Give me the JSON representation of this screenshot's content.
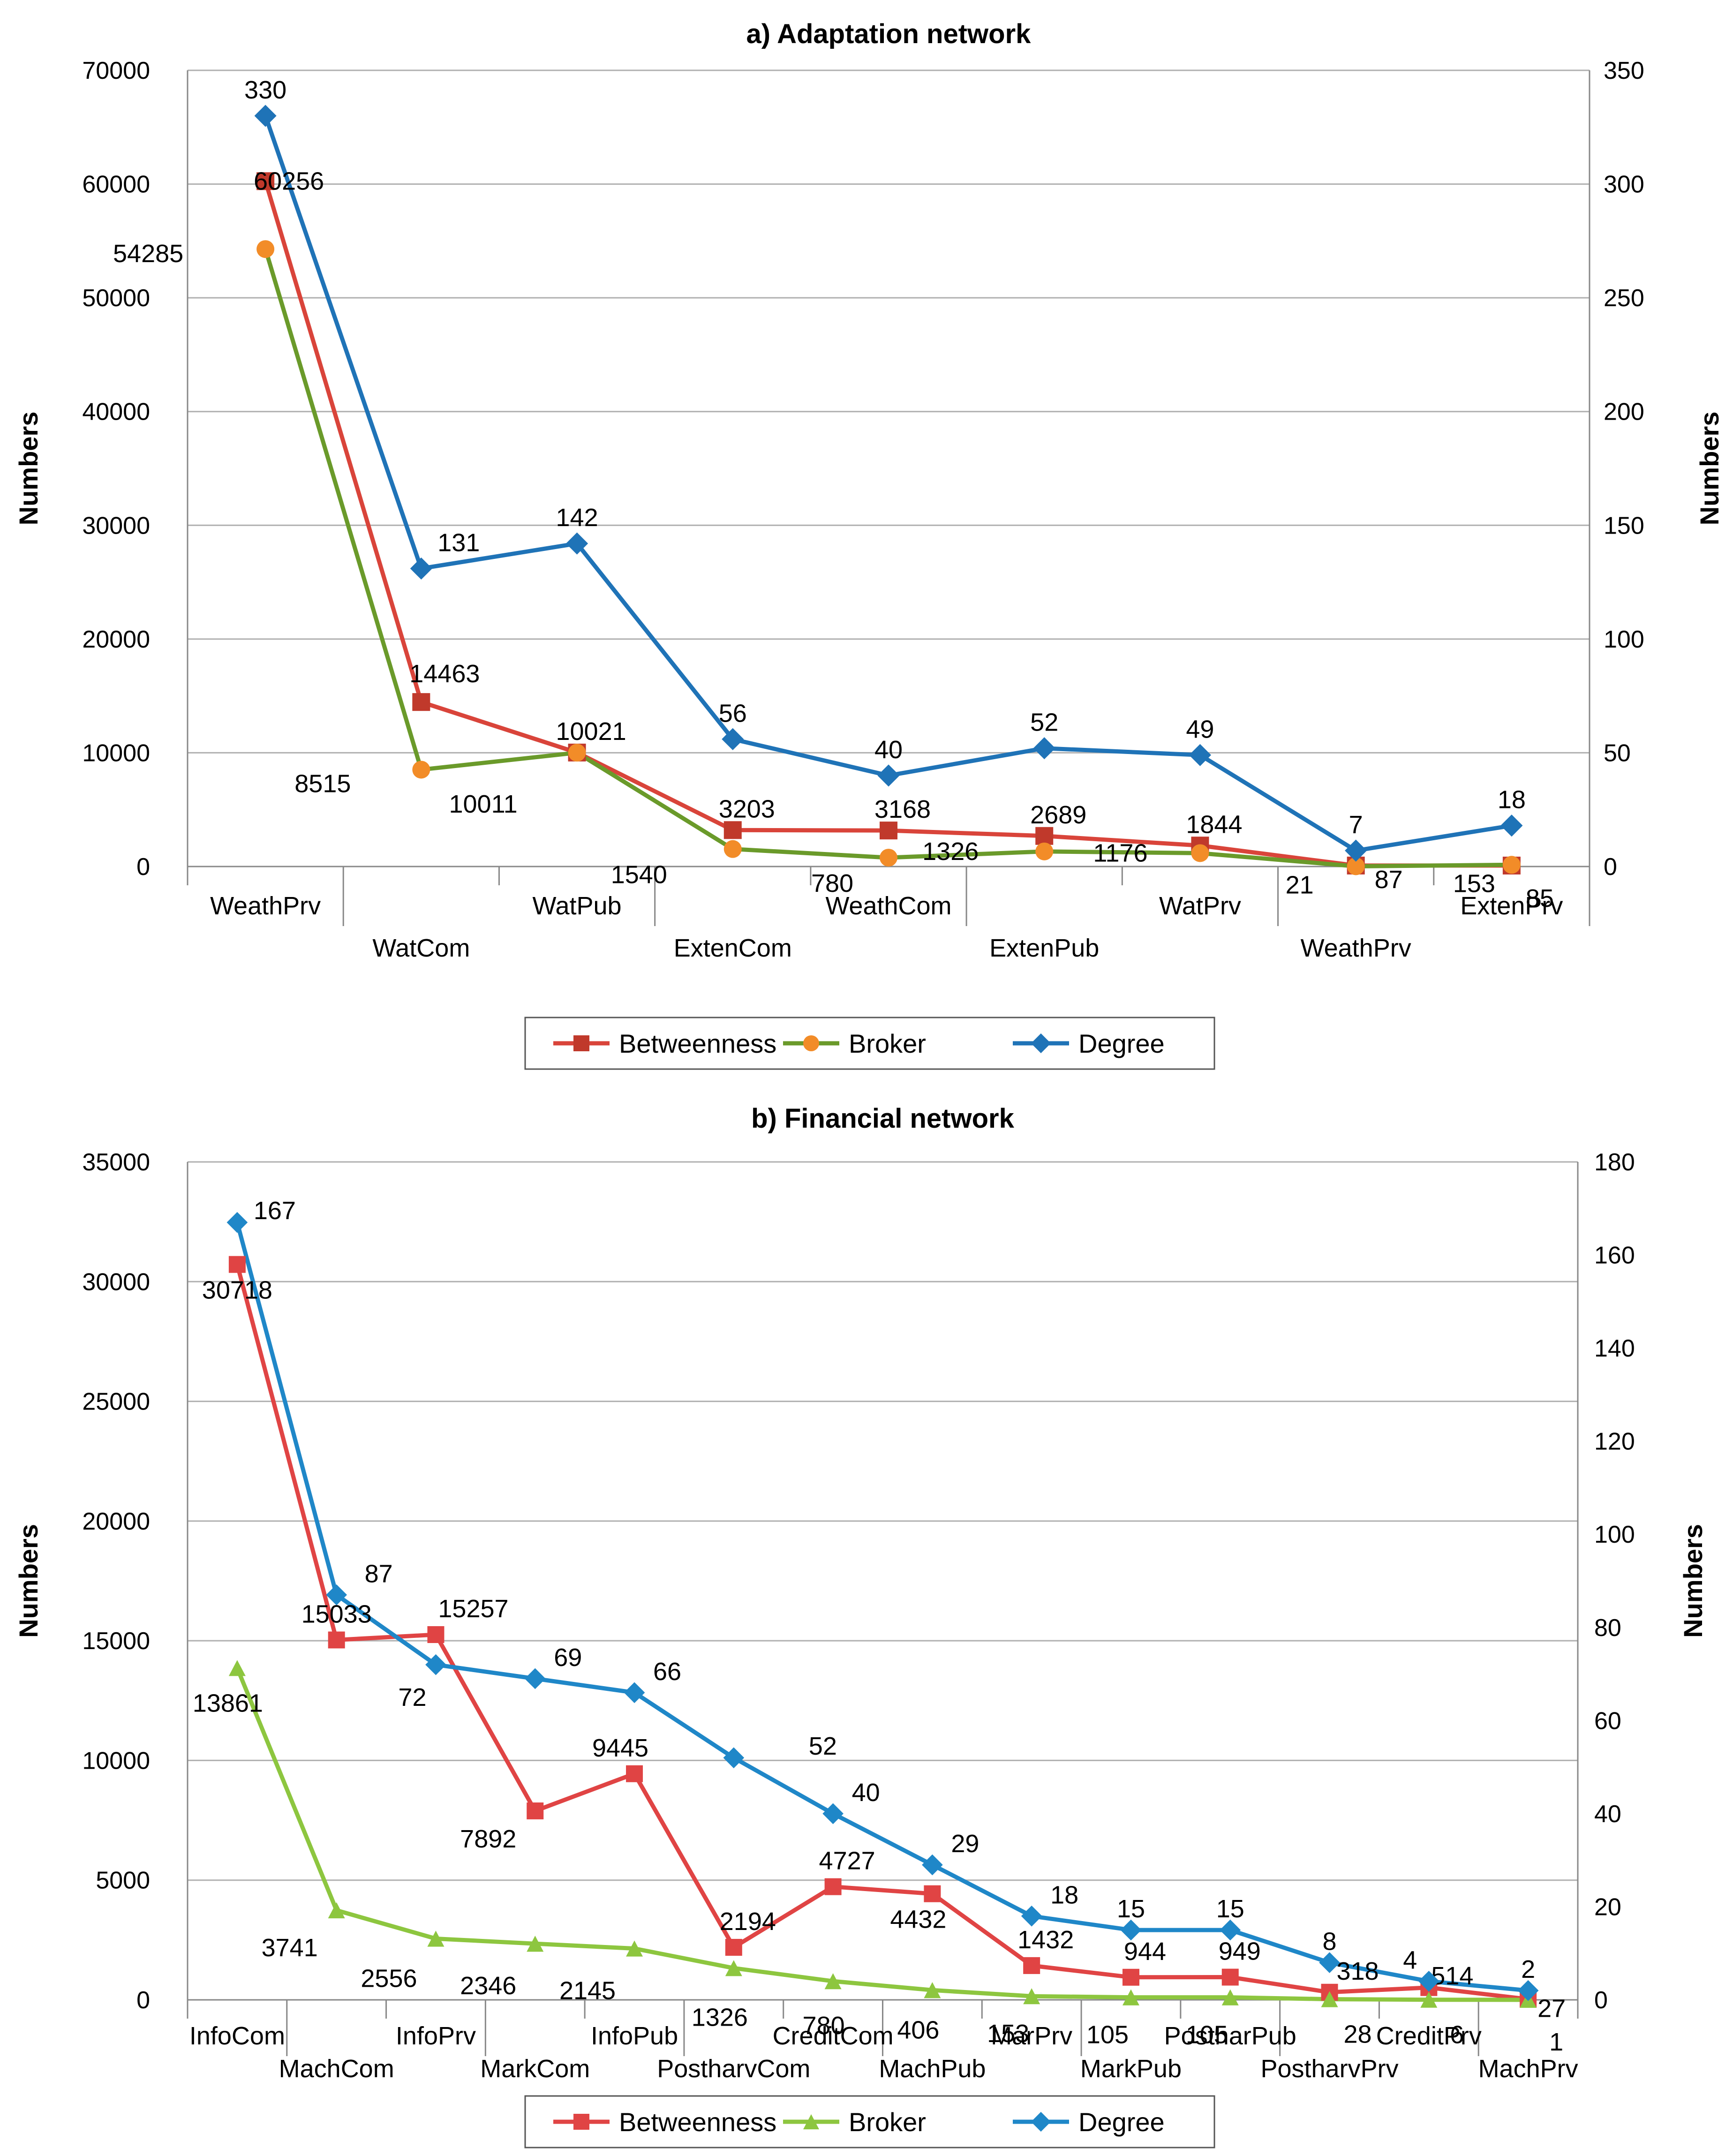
{
  "chart_data": [
    {
      "type": "line",
      "title": "a) Adaptation network",
      "ylabel_left": "Numbers",
      "ylabel_right": "Numbers",
      "ylim_left": [
        0,
        70000
      ],
      "ylim_right": [
        0,
        350
      ],
      "yticks_left": [
        "0",
        "10000",
        "20000",
        "30000",
        "40000",
        "50000",
        "60000",
        "70000"
      ],
      "yticks_right": [
        "0",
        "50",
        "100",
        "150",
        "200",
        "250",
        "300",
        "350"
      ],
      "categories": [
        "WeathPrv",
        "WatCom",
        "WatPub",
        "ExtenCom",
        "WeathCom",
        "ExtenPub",
        "WatPrv",
        "WeathPrv",
        "ExtenPrv"
      ],
      "grid": true,
      "legend_position": "bottom",
      "series": [
        {
          "name": "Betweenness",
          "axis": "left",
          "marker": "square",
          "color": "#c0392b",
          "line_color": "#d9443a",
          "values": [
            60256,
            14463,
            10021,
            3203,
            3168,
            2689,
            1844,
            87,
            85
          ],
          "labels": [
            "60256",
            "14463",
            "10021",
            "3203",
            "3168",
            "2689",
            "1844",
            "87",
            "85"
          ]
        },
        {
          "name": "Broker",
          "axis": "left",
          "marker": "circle",
          "color": "#f28c28",
          "line_color": "#6a9a2a",
          "values": [
            54285,
            8515,
            10011,
            1540,
            780,
            1326,
            1176,
            21,
            153
          ],
          "labels": [
            "54285",
            "8515",
            "10011",
            "1540",
            "780",
            "1326",
            "1176",
            "21",
            "153"
          ]
        },
        {
          "name": "Degree",
          "axis": "right",
          "marker": "diamond",
          "color": "#1f73b7",
          "line_color": "#1f73b7",
          "values": [
            330,
            131,
            142,
            56,
            40,
            52,
            49,
            7,
            18
          ],
          "labels": [
            "330",
            "131",
            "142",
            "56",
            "40",
            "52",
            "49",
            "7",
            "18"
          ]
        }
      ]
    },
    {
      "type": "line",
      "title": "b) Financial network",
      "ylabel_left": "Numbers",
      "ylabel_right": "Numbers",
      "ylim_left": [
        0,
        35000
      ],
      "ylim_right": [
        0,
        180
      ],
      "yticks_left": [
        "0",
        "5000",
        "10000",
        "15000",
        "20000",
        "25000",
        "30000",
        "35000"
      ],
      "yticks_right": [
        "0",
        "20",
        "40",
        "60",
        "80",
        "100",
        "120",
        "140",
        "160",
        "180"
      ],
      "categories": [
        "InfoCom",
        "MachCom",
        "InfoPrv",
        "MarkCom",
        "InfoPub",
        "PostharvCom",
        "CreditCom",
        "MachPub",
        "MarPrv",
        "MarkPub",
        "PostharPub",
        "PostharvPrv",
        "CreditPrv",
        "MachPrv"
      ],
      "grid": true,
      "legend_position": "bottom",
      "series": [
        {
          "name": "Betweenness",
          "axis": "left",
          "marker": "square",
          "color": "#e04444",
          "line_color": "#e04444",
          "values": [
            30718,
            15033,
            15257,
            7892,
            9445,
            2194,
            4727,
            4432,
            1432,
            944,
            949,
            318,
            514,
            27
          ],
          "labels": [
            "30718",
            "15033",
            "15257",
            "7892",
            "9445",
            "2194",
            "4727",
            "4432",
            "1432",
            "944",
            "949",
            "318",
            "514",
            "27"
          ]
        },
        {
          "name": "Broker",
          "axis": "left",
          "marker": "triangle",
          "color": "#8dc63f",
          "line_color": "#8dc63f",
          "values": [
            13861,
            3741,
            2556,
            2346,
            2145,
            1326,
            780,
            406,
            153,
            105,
            105,
            28,
            6,
            1
          ],
          "labels": [
            "13861",
            "3741",
            "2556",
            "2346",
            "2145",
            "1326",
            "780",
            "406",
            "153",
            "105",
            "105",
            "28",
            "6",
            "1"
          ]
        },
        {
          "name": "Degree",
          "axis": "right",
          "marker": "diamond",
          "color": "#1f87c8",
          "line_color": "#1f87c8",
          "values": [
            167,
            87,
            72,
            69,
            66,
            52,
            40,
            29,
            18,
            15,
            15,
            8,
            4,
            2
          ],
          "labels": [
            "167",
            "87",
            "72",
            "69",
            "66",
            "52",
            "40",
            "29",
            "18",
            "15",
            "15",
            "8",
            "4",
            "2"
          ]
        }
      ]
    }
  ]
}
